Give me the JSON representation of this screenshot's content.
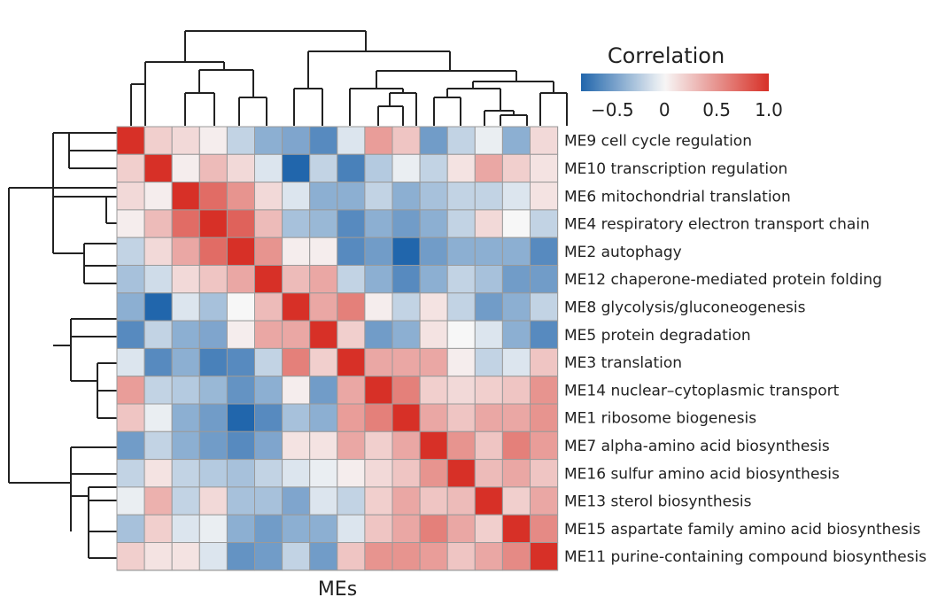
{
  "chart_data": {
    "type": "heatmap",
    "xlabel": "MEs",
    "legend": {
      "title": "Correlation",
      "range": [
        -0.8,
        1.0
      ],
      "ticks": [
        -0.5,
        0,
        0.5,
        1.0
      ],
      "tick_labels": [
        "−0.5",
        "0",
        "0.5",
        "1.0"
      ],
      "colors": {
        "neg": "#2166ac",
        "mid": "#f7f7f7",
        "pos": "#d73027"
      },
      "placement": "top-right"
    },
    "rows": [
      "ME9 cell cycle regulation",
      "ME10 transcription regulation",
      "ME6 mitochondrial translation",
      "ME4 respiratory electron transport chain",
      "ME2 autophagy",
      "ME12 chaperone-mediated protein folding",
      "ME8 glycolysis/gluconeogenesis",
      "ME5 protein degradation",
      "ME3 translation",
      "ME14 nuclear–cytoplasmic transport",
      "ME1 ribosome biogenesis",
      "ME7 alpha-amino acid biosynthesis",
      "ME16 sulfur amino acid biosynthesis",
      "ME13 sterol biosynthesis",
      "ME15 aspartate family amino acid biosynthesis",
      "ME11 purine-containing compound biosynthesis"
    ],
    "matrix": [
      [
        1.0,
        0.2,
        0.15,
        0.05,
        -0.2,
        -0.4,
        -0.45,
        -0.6,
        -0.1,
        0.45,
        0.25,
        -0.5,
        -0.2,
        -0.05,
        -0.4,
        0.15
      ],
      [
        0.2,
        1.0,
        0.05,
        0.3,
        0.15,
        -0.1,
        -0.8,
        -0.2,
        -0.65,
        -0.25,
        -0.05,
        -0.2,
        0.1,
        0.4,
        0.2,
        0.1
      ],
      [
        0.15,
        0.05,
        1.0,
        0.7,
        0.5,
        0.15,
        -0.1,
        -0.4,
        -0.4,
        -0.2,
        -0.4,
        -0.3,
        -0.2,
        -0.2,
        -0.1,
        0.1
      ],
      [
        0.05,
        0.3,
        0.7,
        1.0,
        0.75,
        0.3,
        -0.3,
        -0.35,
        -0.6,
        -0.4,
        -0.5,
        -0.4,
        -0.2,
        0.15,
        0.0,
        -0.2
      ],
      [
        -0.2,
        0.15,
        0.4,
        0.7,
        1.0,
        0.5,
        0.05,
        0.05,
        -0.6,
        -0.5,
        -0.85,
        -0.5,
        -0.4,
        -0.4,
        -0.4,
        -0.6
      ],
      [
        -0.3,
        -0.15,
        0.15,
        0.25,
        0.4,
        1.0,
        0.3,
        0.4,
        -0.2,
        -0.4,
        -0.6,
        -0.4,
        -0.2,
        -0.3,
        -0.5,
        -0.5
      ],
      [
        -0.4,
        -0.8,
        -0.1,
        -0.3,
        0.0,
        0.3,
        1.0,
        0.4,
        0.6,
        0.05,
        -0.2,
        0.1,
        -0.2,
        -0.5,
        -0.4,
        -0.2
      ],
      [
        -0.6,
        -0.2,
        -0.4,
        -0.45,
        0.05,
        0.4,
        0.4,
        1.0,
        0.2,
        -0.5,
        -0.4,
        0.1,
        0.0,
        -0.1,
        -0.4,
        -0.6
      ],
      [
        -0.1,
        -0.6,
        -0.4,
        -0.65,
        -0.6,
        -0.2,
        0.6,
        0.2,
        1.0,
        0.4,
        0.4,
        0.4,
        0.05,
        -0.2,
        -0.1,
        0.25
      ],
      [
        0.45,
        -0.2,
        -0.25,
        -0.35,
        -0.55,
        -0.4,
        0.05,
        -0.5,
        0.4,
        1.0,
        0.6,
        0.2,
        0.15,
        0.2,
        0.25,
        0.5
      ],
      [
        0.25,
        -0.05,
        -0.4,
        -0.5,
        -0.85,
        -0.6,
        -0.3,
        -0.4,
        0.45,
        0.6,
        1.0,
        0.4,
        0.25,
        0.4,
        0.4,
        0.5
      ],
      [
        -0.5,
        -0.2,
        -0.4,
        -0.5,
        -0.6,
        -0.45,
        0.1,
        0.1,
        0.4,
        0.2,
        0.4,
        1.0,
        0.5,
        0.25,
        0.6,
        0.45
      ],
      [
        -0.2,
        0.1,
        -0.2,
        -0.25,
        -0.3,
        -0.2,
        -0.1,
        -0.05,
        0.05,
        0.15,
        0.25,
        0.5,
        1.0,
        0.3,
        0.4,
        0.25
      ],
      [
        -0.05,
        0.35,
        -0.2,
        0.15,
        -0.3,
        -0.3,
        -0.45,
        -0.1,
        -0.2,
        0.2,
        0.4,
        0.25,
        0.3,
        1.0,
        0.2,
        0.4
      ],
      [
        -0.3,
        0.2,
        -0.1,
        -0.05,
        -0.4,
        -0.5,
        -0.4,
        -0.4,
        -0.1,
        0.25,
        0.4,
        0.6,
        0.4,
        0.2,
        1.0,
        0.55
      ],
      [
        0.2,
        0.1,
        0.1,
        -0.1,
        -0.55,
        -0.5,
        -0.2,
        -0.5,
        0.25,
        0.5,
        0.5,
        0.45,
        0.25,
        0.4,
        0.55,
        1.0
      ]
    ]
  }
}
